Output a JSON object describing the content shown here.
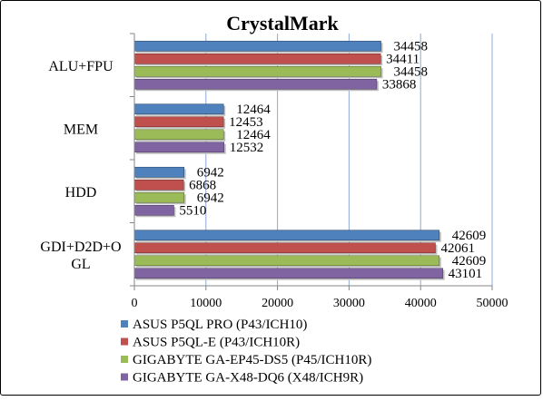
{
  "chart_data": {
    "type": "bar",
    "orientation": "horizontal",
    "title": "CrystalMark",
    "xlabel": "",
    "ylabel": "",
    "xlim": [
      0,
      50000
    ],
    "x_ticks": [
      0,
      10000,
      20000,
      30000,
      40000,
      50000
    ],
    "x_tick_labels": [
      "0",
      "10000",
      "20000",
      "30000",
      "40000",
      "50000"
    ],
    "grid": "vertical",
    "legend_position": "bottom",
    "categories": [
      {
        "lines": [
          "ALU+FPU"
        ]
      },
      {
        "lines": [
          "MEM"
        ]
      },
      {
        "lines": [
          "HDD"
        ]
      },
      {
        "lines": [
          "GDI+D2D+O",
          "GL"
        ]
      }
    ],
    "series": [
      {
        "name": "ASUS P5QL PRO (P43/ICH10)",
        "color": "#4F81BD",
        "values": [
          34458,
          12464,
          6942,
          42609
        ]
      },
      {
        "name": "ASUS P5QL-E (P43/ICH10R)",
        "color": "#C0504D",
        "values": [
          34411,
          12453,
          6868,
          42061
        ]
      },
      {
        "name": "GIGABYTE GA-EP45-DS5 (P45/ICH10R)",
        "color": "#9BBB59",
        "values": [
          34458,
          12464,
          6942,
          42609
        ]
      },
      {
        "name": "GIGABYTE GA-X48-DQ6 (X48/ICH9R)",
        "color": "#8064A2",
        "values": [
          33868,
          12532,
          5510,
          43101
        ]
      }
    ]
  }
}
